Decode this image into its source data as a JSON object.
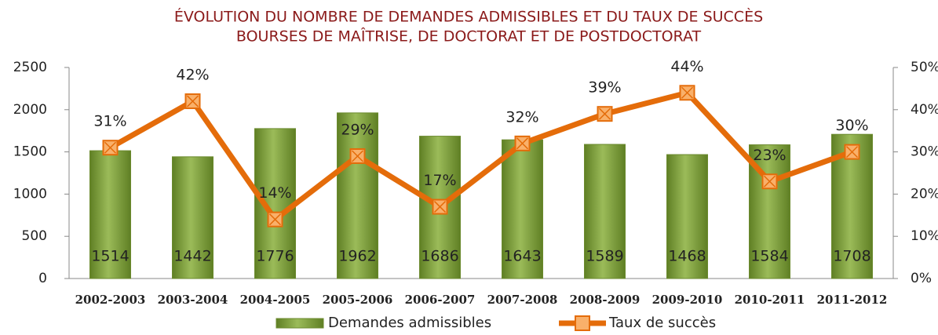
{
  "chart_data": {
    "type": "bar-line",
    "title": [
      "ÉVOLUTION DU NOMBRE DE DEMANDES ADMISSIBLES ET DU TAUX DE SUCCÈS",
      "BOURSES DE MAÎTRISE, DE DOCTORAT ET DE POSTDOCTORAT"
    ],
    "categories": [
      "2002-2003",
      "2003-2004",
      "2004-2005",
      "2005-2006",
      "2006-2007",
      "2007-2008",
      "2008-2009",
      "2009-2010",
      "2010-2011",
      "2011-2012"
    ],
    "series": [
      {
        "name": "Demandes admissibles",
        "type": "bar",
        "color": "#7f9f3c",
        "values": [
          1514,
          1442,
          1776,
          1962,
          1686,
          1643,
          1589,
          1468,
          1584,
          1708
        ]
      },
      {
        "name": "Taux de succès",
        "type": "line",
        "axis": "y2",
        "color": "#e46c0a",
        "values": [
          31,
          42,
          14,
          29,
          17,
          32,
          39,
          44,
          23,
          30
        ],
        "value_labels": [
          "31%",
          "42%",
          "14%",
          "29%",
          "17%",
          "32%",
          "39%",
          "44%",
          "23%",
          "30%"
        ]
      }
    ],
    "ylim": [
      0,
      2500
    ],
    "yticks": [
      0,
      500,
      1000,
      1500,
      2000,
      2500
    ],
    "y2lim": [
      0,
      50
    ],
    "y2ticks": [
      {
        "value": 0,
        "label": "0%"
      },
      {
        "value": 10,
        "label": "10%"
      },
      {
        "value": 20,
        "label": "20%"
      },
      {
        "value": 30,
        "label": "30%"
      },
      {
        "value": 40,
        "label": "40%"
      },
      {
        "value": 50,
        "label": "50%"
      }
    ],
    "legend": "bottom"
  }
}
